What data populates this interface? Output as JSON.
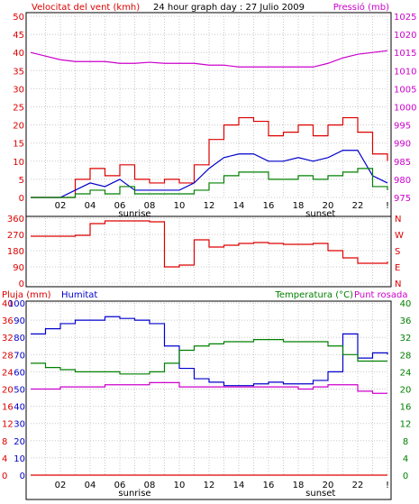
{
  "header": {
    "left_label": "Velocitat del vent (kmh)",
    "title": "24 hour graph day : 27 Julio 2009",
    "right_label": "Pressió (mb)"
  },
  "colors": {
    "wind": "#dd0000",
    "gust_avg": "#0000cc",
    "wind_low": "#008000",
    "pressure": "#cc00cc",
    "direction": "#dd0000",
    "rain": "#dd0000",
    "humidity": "#0000cc",
    "temperature": "#008000",
    "dewpoint": "#cc00cc"
  },
  "x_labels": [
    "02",
    "04",
    "06",
    "08",
    "10",
    "12",
    "14",
    "16",
    "18",
    "20",
    "22",
    "!"
  ],
  "sun_labels": {
    "sunrise": "sunrise",
    "sunset": "sunset"
  },
  "chart_data": [
    {
      "type": "line",
      "id": "wind_pressure",
      "title": "24 hour graph day : 27 Julio 2009",
      "ylabel_left": "Velocitat del vent (kmh)",
      "ylabel_right": "Pressió (mb)",
      "ylim_left": [
        0,
        50
      ],
      "ylim_right": [
        975,
        1025
      ],
      "yticks_left": [
        "0",
        "5",
        "10",
        "15",
        "20",
        "25",
        "30",
        "35",
        "40",
        "45",
        "50"
      ],
      "yticks_right": [
        "975",
        "980",
        "985",
        "990",
        "995",
        "1000",
        "1005",
        "1010",
        "1015",
        "1020",
        "1025"
      ],
      "x": [
        0,
        1,
        2,
        3,
        4,
        5,
        6,
        7,
        8,
        9,
        10,
        11,
        12,
        13,
        14,
        15,
        16,
        17,
        18,
        19,
        20,
        21,
        22,
        23,
        24
      ],
      "series": [
        {
          "values": [
            0,
            0,
            0,
            5,
            8,
            6,
            9,
            5,
            4,
            5,
            4,
            9,
            16,
            20,
            22,
            21,
            17,
            18,
            20,
            17,
            20,
            22,
            18,
            12,
            10
          ]
        },
        {
          "values": [
            0,
            0,
            0,
            2,
            4,
            3,
            5,
            2,
            2,
            2,
            2,
            4,
            8,
            11,
            12,
            12,
            10,
            10,
            11,
            10,
            11,
            13,
            13,
            6,
            4
          ]
        },
        {
          "values": [
            0,
            0,
            0,
            1,
            2,
            1,
            3,
            1,
            1,
            1,
            1,
            2,
            4,
            6,
            7,
            7,
            5,
            5,
            6,
            5,
            6,
            7,
            8,
            3,
            2
          ]
        },
        {
          "values": [
            1015,
            1014,
            1013,
            1012.5,
            1012.5,
            1012.5,
            1012,
            1012,
            1012.3,
            1012,
            1012,
            1012,
            1011.5,
            1011.5,
            1011,
            1011,
            1011,
            1011,
            1011,
            1011,
            1012,
            1013.5,
            1014.5,
            1015,
            1015.5
          ]
        }
      ]
    },
    {
      "type": "line",
      "id": "direction",
      "ylim": [
        0,
        360
      ],
      "yticks": [
        "0",
        "90",
        "180",
        "270",
        "360"
      ],
      "yticks_right": [
        "N",
        "E",
        "S",
        "W",
        "N"
      ],
      "x": [
        0,
        1,
        2,
        3,
        4,
        5,
        6,
        7,
        8,
        9,
        10,
        11,
        12,
        13,
        14,
        15,
        16,
        17,
        18,
        19,
        20,
        21,
        22,
        23,
        24
      ],
      "series": [
        {
          "values": [
            260,
            260,
            260,
            265,
            330,
            345,
            345,
            345,
            340,
            90,
            100,
            240,
            200,
            210,
            220,
            225,
            220,
            215,
            215,
            220,
            180,
            140,
            110,
            110,
            120
          ]
        }
      ]
    },
    {
      "type": "line",
      "id": "humidity_temp",
      "ylabel_left": "Pluja (mm)",
      "ylabel_left2": "Humitat",
      "ylabel_right": "Temperatura (°C)",
      "ylabel_right2": "Punt rosada",
      "ylim_left": [
        0,
        100
      ],
      "ylim_right": [
        0,
        40
      ],
      "yticks_left_rain": [
        "0",
        "4",
        "8",
        "12",
        "16",
        "20",
        "24",
        "28",
        "32",
        "36",
        "40"
      ],
      "yticks_left_hum": [
        "0",
        "10",
        "20",
        "30",
        "40",
        "50",
        "60",
        "70",
        "80",
        "90",
        "100"
      ],
      "yticks_right": [
        "0",
        "4",
        "8",
        "12",
        "16",
        "20",
        "24",
        "28",
        "32",
        "36",
        "40"
      ],
      "x": [
        0,
        1,
        2,
        3,
        4,
        5,
        6,
        7,
        8,
        9,
        10,
        11,
        12,
        13,
        14,
        15,
        16,
        17,
        18,
        19,
        20,
        21,
        22,
        23,
        24
      ],
      "series": [
        {
          "values": [
            0,
            0,
            0,
            0,
            0,
            0,
            0,
            0,
            0,
            0,
            0,
            0,
            0,
            0,
            0,
            0,
            0,
            0,
            0,
            0,
            0,
            0,
            0,
            0,
            0
          ]
        },
        {
          "values": [
            82,
            85,
            88,
            90,
            90,
            92,
            91,
            90,
            88,
            75,
            62,
            56,
            54,
            52,
            52,
            53,
            54,
            53,
            53,
            55,
            60,
            82,
            68,
            71,
            70
          ]
        },
        {
          "values": [
            26,
            25,
            24.5,
            24,
            24,
            24,
            23.5,
            23.5,
            24,
            26,
            29,
            30,
            30.5,
            31,
            31,
            31.5,
            31.5,
            31,
            31,
            31,
            30,
            28,
            26.5,
            26.5,
            26.5
          ]
        },
        {
          "values": [
            20,
            20,
            20.5,
            20.5,
            20.5,
            21,
            21,
            21,
            21.5,
            21.5,
            20.5,
            20.5,
            20.5,
            20.5,
            20.5,
            20.5,
            20.5,
            20.5,
            20,
            20.5,
            21,
            21,
            19.5,
            19,
            19
          ]
        }
      ]
    }
  ]
}
